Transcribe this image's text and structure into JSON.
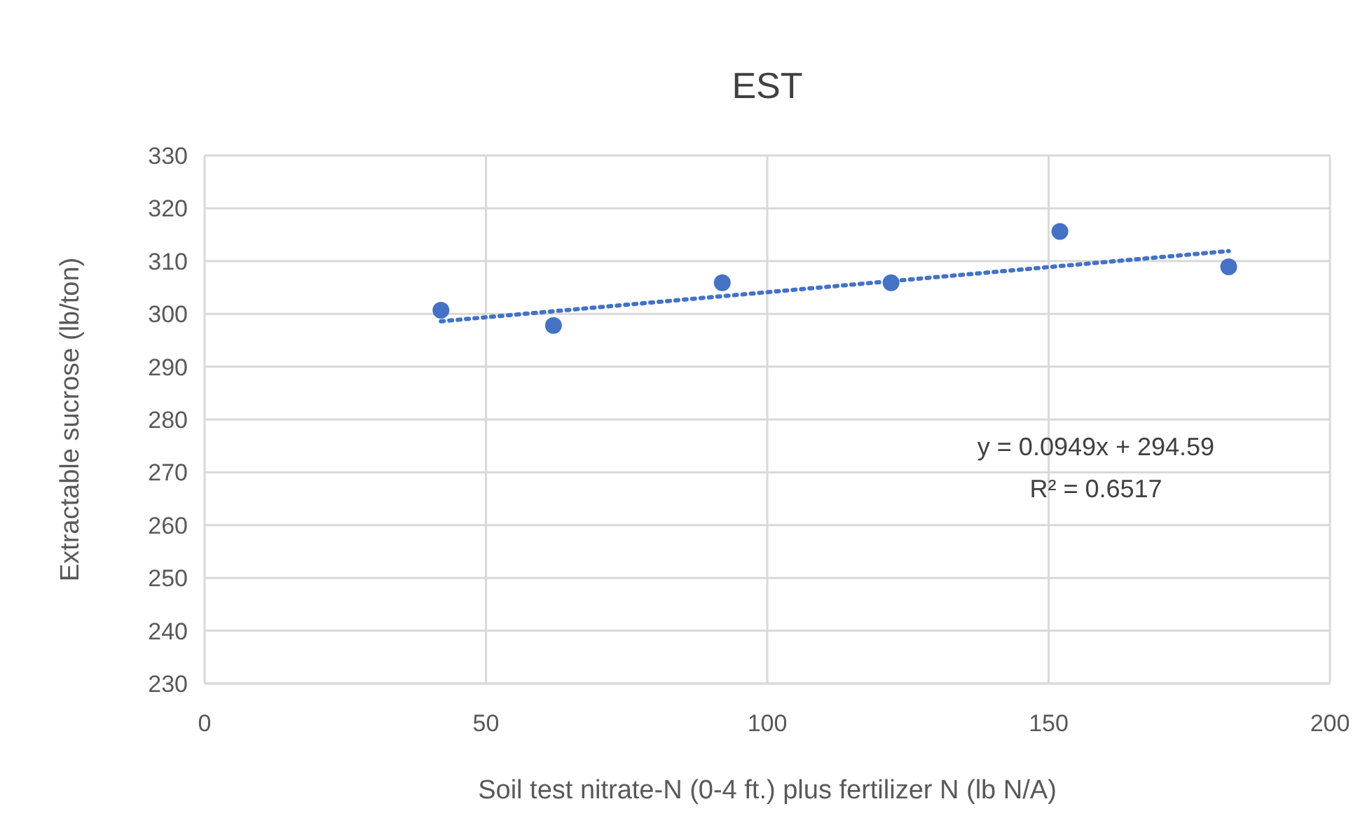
{
  "chart_data": {
    "type": "scatter",
    "title": "EST",
    "xlabel": "Soil test nitrate-N (0-4 ft.) plus fertilizer N (lb N/A)",
    "ylabel": "Extractable sucrose (lb/ton)",
    "xlim": [
      0,
      200
    ],
    "xticks": [
      0,
      50,
      100,
      150,
      200
    ],
    "ylim": [
      230,
      330
    ],
    "yticks": [
      230,
      240,
      250,
      260,
      270,
      280,
      290,
      300,
      310,
      320,
      330
    ],
    "grid": true,
    "series": [
      {
        "color": "#4472c4",
        "marker": "circle",
        "x": [
          42,
          62,
          92,
          122,
          152,
          182
        ],
        "values": [
          300.7,
          297.8,
          305.9,
          305.9,
          315.6,
          308.9
        ]
      },
      {
        "type": "line",
        "color": "#4472c4",
        "line_style": "dotted",
        "marker": "none",
        "x": [
          42,
          182
        ],
        "values": [
          298.6,
          311.9
        ]
      }
    ],
    "annotations": [
      "y = 0.0949x + 294.59",
      "R² = 0.6517"
    ]
  }
}
